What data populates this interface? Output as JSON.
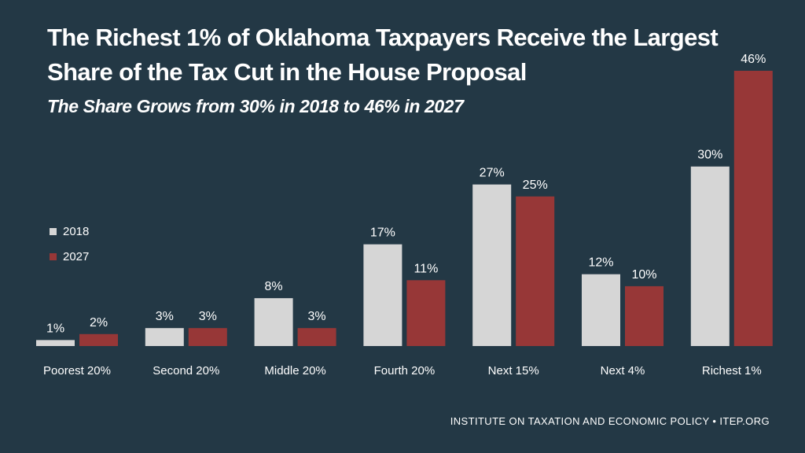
{
  "title": "The Richest 1% of Oklahoma Taxpayers Receive the Largest Share of the Tax Cut in the House Proposal",
  "subtitle": "The Share Grows from 30% in 2018 to 46% in 2027",
  "footer": "INSTITUTE ON TAXATION AND ECONOMIC POLICY • ITEP.ORG",
  "colors": {
    "background": "#233845",
    "series_2018": "#d6d6d6",
    "series_2027": "#973737",
    "text": "#ffffff"
  },
  "chart_data": {
    "type": "bar",
    "title": "The Richest 1% of Oklahoma Taxpayers Receive the Largest Share of the Tax Cut in the House Proposal",
    "subtitle": "The Share Grows from 30% in 2018 to 46% in 2027",
    "categories": [
      "Poorest 20%",
      "Second 20%",
      "Middle 20%",
      "Fourth 20%",
      "Next 15%",
      "Next 4%",
      "Richest 1%"
    ],
    "series": [
      {
        "name": "2018",
        "values": [
          1,
          3,
          8,
          17,
          27,
          12,
          30
        ],
        "labels": [
          "1%",
          "3%",
          "8%",
          "17%",
          "27%",
          "12%",
          "30%"
        ]
      },
      {
        "name": "2027",
        "values": [
          2,
          3,
          3,
          11,
          25,
          10,
          46
        ],
        "labels": [
          "2%",
          "3%",
          "3%",
          "11%",
          "25%",
          "10%",
          "46%"
        ]
      }
    ],
    "xlabel": "",
    "ylabel": "",
    "ylim": [
      0,
      46
    ],
    "grid": false,
    "legend_position": "left"
  }
}
